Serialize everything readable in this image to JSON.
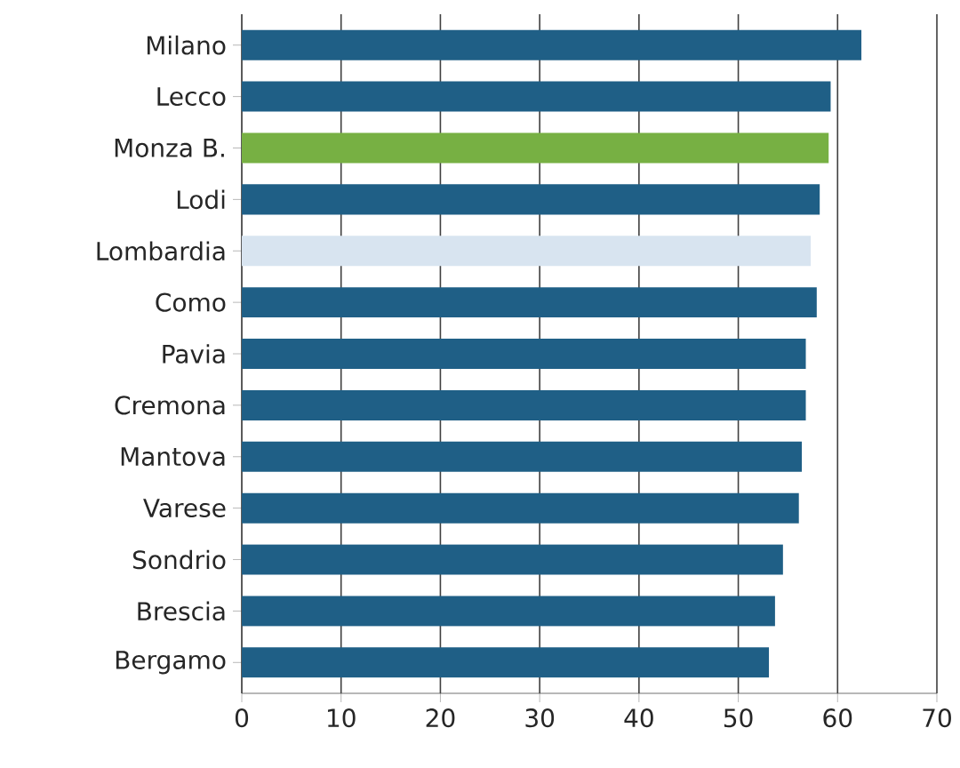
{
  "chart_data": {
    "type": "bar",
    "orientation": "horizontal",
    "categories": [
      "Milano",
      "Lecco",
      "Monza B.",
      "Lodi",
      "Lombardia",
      "Como",
      "Pavia",
      "Cremona",
      "Mantova",
      "Varese",
      "Sondrio",
      "Brescia",
      "Bergamo"
    ],
    "values": [
      62.4,
      59.3,
      59.1,
      58.2,
      57.3,
      57.9,
      56.8,
      56.8,
      56.4,
      56.1,
      54.5,
      53.7,
      53.1
    ],
    "colors": [
      "#1f5f86",
      "#1f5f86",
      "#77b043",
      "#1f5f86",
      "#d8e4f0",
      "#1f5f86",
      "#1f5f86",
      "#1f5f86",
      "#1f5f86",
      "#1f5f86",
      "#1f5f86",
      "#1f5f86",
      "#1f5f86"
    ],
    "xlim": [
      0,
      70
    ],
    "xticks": [
      0,
      10,
      20,
      30,
      40,
      50,
      60,
      70
    ],
    "grid": "x"
  }
}
